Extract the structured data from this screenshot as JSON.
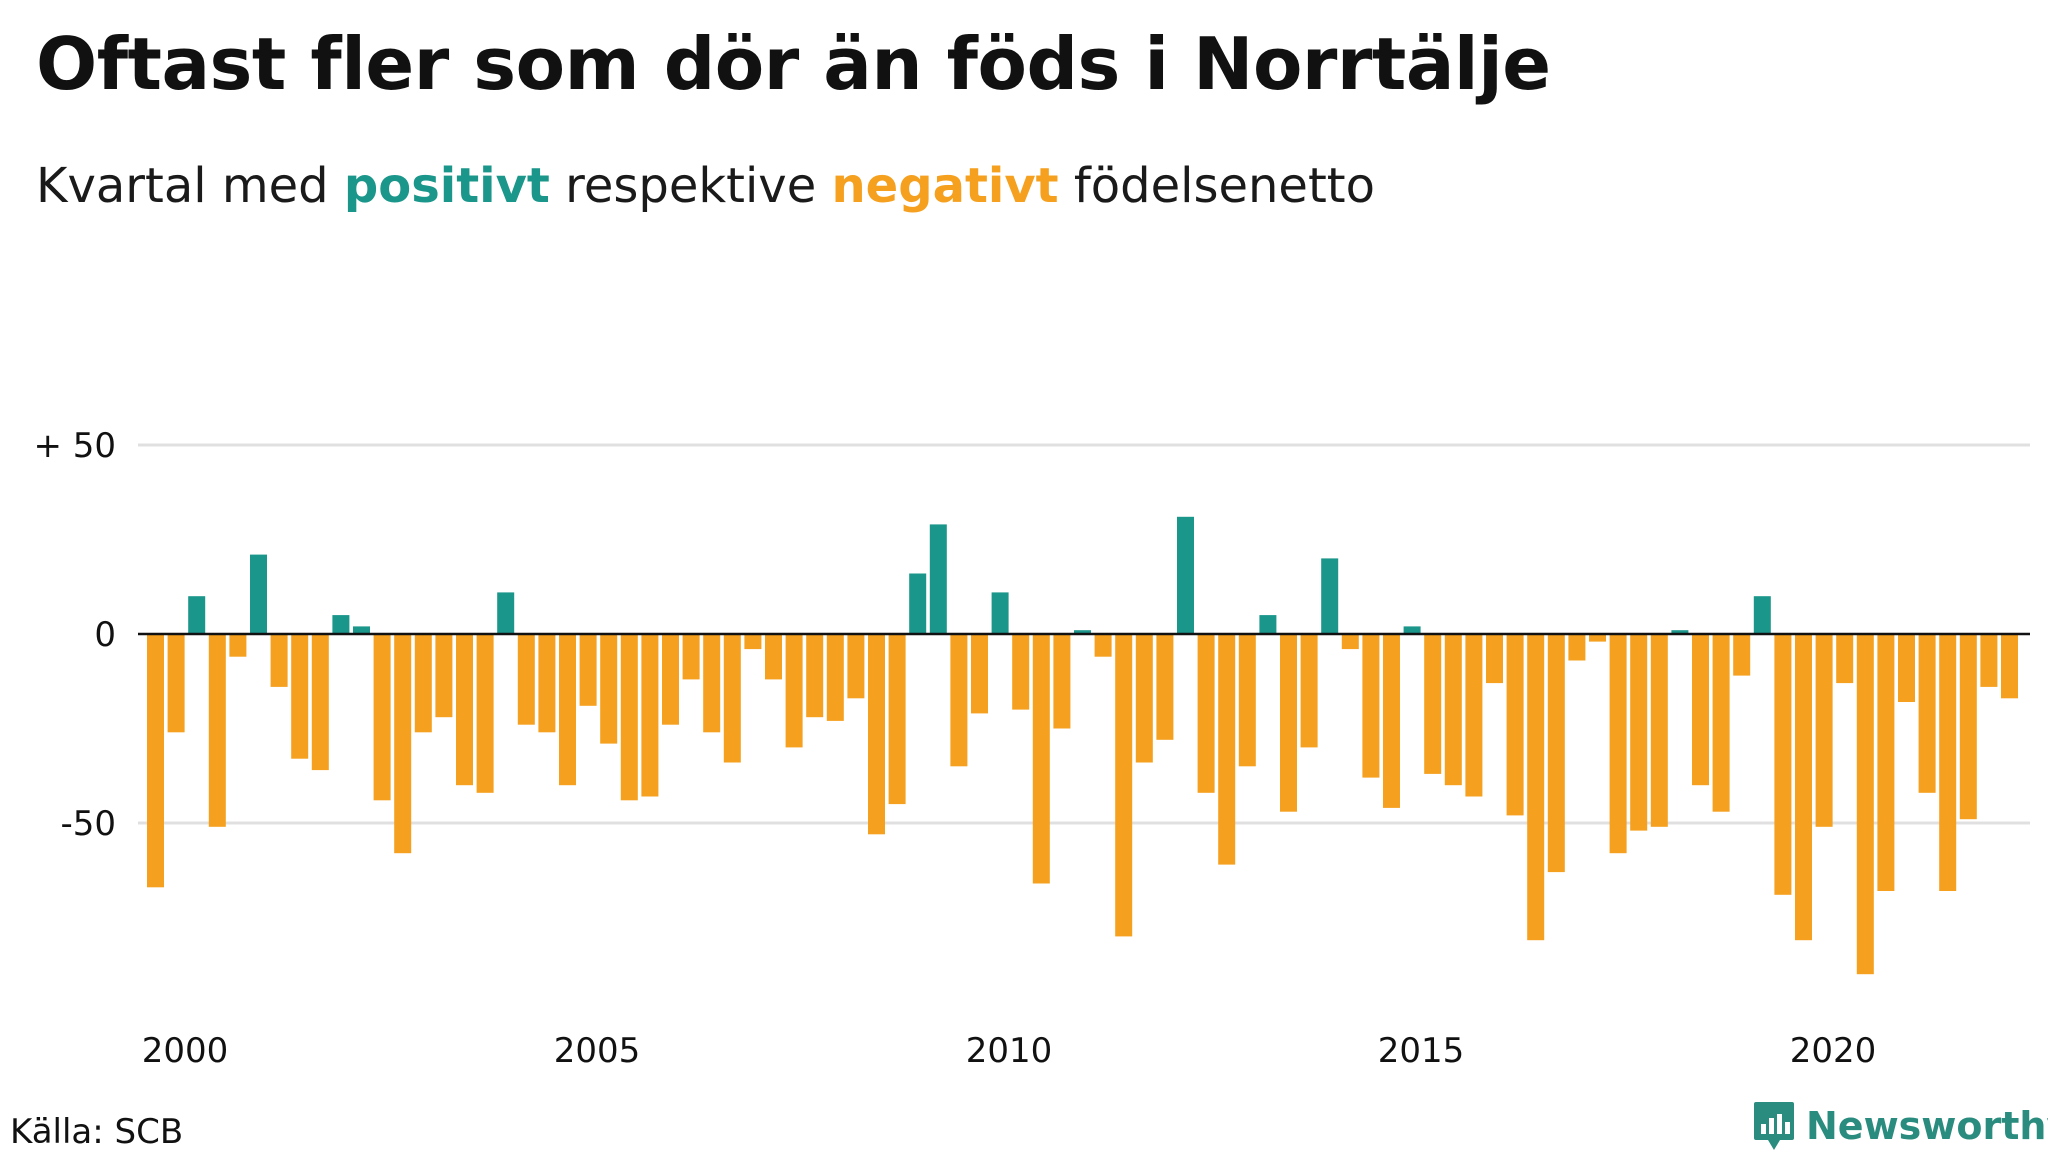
{
  "title": "Oftast fler som dör än föds i Norrtälje",
  "subtitle": {
    "part1": "Kvartal med ",
    "positive": "positivt",
    "part2": " respektive ",
    "negative": "negativt",
    "part3": " födelsenetto"
  },
  "source": "Källa: SCB",
  "logo": {
    "text": "Newsworthy",
    "icon": "newsworthy-logo-icon"
  },
  "colors": {
    "positive": "#1a968a",
    "negative": "#f5a01e",
    "grid": "#e0e0e0",
    "zero_line": "#111111"
  },
  "chart_data": {
    "type": "bar",
    "title": "Oftast fler som dör än föds i Norrtälje",
    "subtitle": "Kvartal med positivt respektive negativt födelsenetto",
    "xlabel": "",
    "ylabel": "",
    "ylim": [
      -92,
      52
    ],
    "yticks": [
      {
        "value": 50,
        "label": "+ 50"
      },
      {
        "value": 0,
        "label": "0"
      },
      {
        "value": -50,
        "label": "-50"
      }
    ],
    "xticks": [
      {
        "value": 2000,
        "label": "2000"
      },
      {
        "value": 2005,
        "label": "2005"
      },
      {
        "value": 2010,
        "label": "2010"
      },
      {
        "value": 2015,
        "label": "2015"
      },
      {
        "value": 2020,
        "label": "2020"
      }
    ],
    "x_start": "2000K1",
    "frequency": "quarterly",
    "grid": true,
    "values": [
      -67,
      -26,
      10,
      -51,
      -6,
      21,
      -14,
      -33,
      -36,
      5,
      2,
      -44,
      -58,
      -26,
      -22,
      -40,
      -42,
      11,
      -24,
      -26,
      -40,
      -19,
      -29,
      -44,
      -43,
      -24,
      -12,
      -26,
      -34,
      -4,
      -12,
      -30,
      -22,
      -23,
      -17,
      -53,
      -45,
      16,
      29,
      -35,
      -21,
      11,
      -20,
      -66,
      -25,
      1,
      -6,
      -80,
      -34,
      -28,
      31,
      -42,
      -61,
      -35,
      5,
      -47,
      -30,
      20,
      -4,
      -38,
      -46,
      2,
      -37,
      -40,
      -43,
      -13,
      -48,
      -81,
      -63,
      -7,
      -2,
      -58,
      -52,
      -51,
      1,
      -40,
      -47,
      -11,
      10,
      -69,
      -81,
      -51,
      -13,
      -90,
      -68,
      -18,
      -42,
      -68,
      -49,
      -14,
      -17
    ]
  }
}
